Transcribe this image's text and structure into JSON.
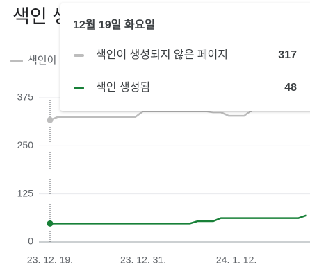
{
  "chart_data": {
    "type": "line",
    "title": "색인 생성",
    "tooltip_title": "12월 19일 화요일",
    "categories": [
      "23. 12. 19.",
      null,
      null,
      null,
      null,
      null,
      null,
      null,
      null,
      null,
      null,
      null,
      "23. 12. 31.",
      null,
      null,
      null,
      null,
      null,
      null,
      null,
      null,
      null,
      null,
      null,
      "24. 1. 12.",
      null,
      null,
      null,
      null,
      null,
      null,
      null,
      null,
      null
    ],
    "series": [
      {
        "name": "색인이 생성되지 않은 페이지",
        "color": "#bdbdbd",
        "values": [
          317,
          325,
          325,
          325,
          325,
          325,
          325,
          325,
          325,
          325,
          325,
          325,
          340,
          340,
          340,
          340,
          340,
          340,
          340,
          340,
          340,
          337,
          337,
          328,
          328,
          328,
          343,
          343,
          343,
          343,
          343,
          343,
          343,
          343
        ]
      },
      {
        "name": "색인 생성됨",
        "color": "#188038",
        "values": [
          48,
          48,
          48,
          48,
          48,
          48,
          48,
          48,
          48,
          48,
          48,
          48,
          48,
          48,
          48,
          48,
          48,
          48,
          48,
          54,
          54,
          54,
          62,
          62,
          62,
          62,
          62,
          62,
          62,
          62,
          62,
          62,
          62,
          69
        ]
      }
    ],
    "ylim": [
      0,
      375
    ],
    "yticks": [
      0,
      125,
      250,
      375
    ],
    "grid": true
  }
}
